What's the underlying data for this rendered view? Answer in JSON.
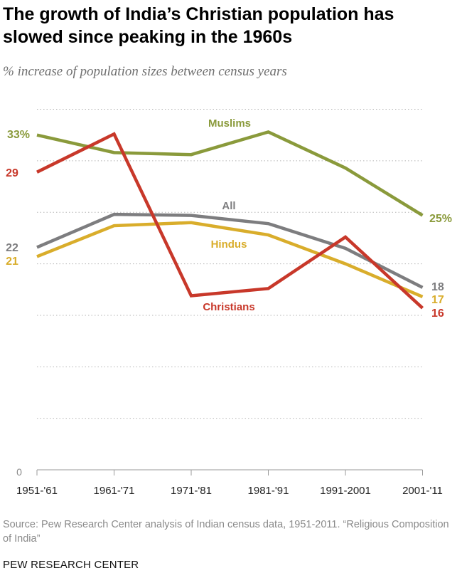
{
  "title": "The growth of India’s Christian population has slowed since peaking in the 1960s",
  "subtitle": "% increase of population sizes between census years",
  "source": "Source: Pew Research Center analysis of Indian census data, 1951-2011. “Religious Composition of India”",
  "org": "PEW RESEARCH CENTER",
  "chart_data": {
    "type": "line",
    "categories": [
      "1951-'61",
      "1961-'71",
      "1971-'81",
      "1981-'91",
      "1991-2001",
      "2001-'11"
    ],
    "ylim": [
      0,
      36
    ],
    "y_axis_tick_labels": [
      "0"
    ],
    "grid": true,
    "series": [
      {
        "name": "Muslims",
        "color": "#8a9a3b",
        "values": [
          32.5,
          30.8,
          30.6,
          32.8,
          29.3,
          24.7
        ],
        "start_label": "33%",
        "end_label": "25%"
      },
      {
        "name": "All",
        "color": "#7d7d7f",
        "values": [
          21.6,
          24.8,
          24.7,
          23.9,
          21.5,
          17.7
        ],
        "start_label": "22",
        "end_label": "18"
      },
      {
        "name": "Hindus",
        "color": "#d9ad2b",
        "values": [
          20.7,
          23.7,
          24.0,
          22.8,
          20.0,
          16.8
        ],
        "start_label": "21",
        "end_label": "17"
      },
      {
        "name": "Christians",
        "color": "#c8382a",
        "values": [
          28.9,
          32.6,
          16.9,
          17.6,
          22.6,
          15.7
        ],
        "start_label": "29",
        "end_label": "16"
      }
    ]
  }
}
